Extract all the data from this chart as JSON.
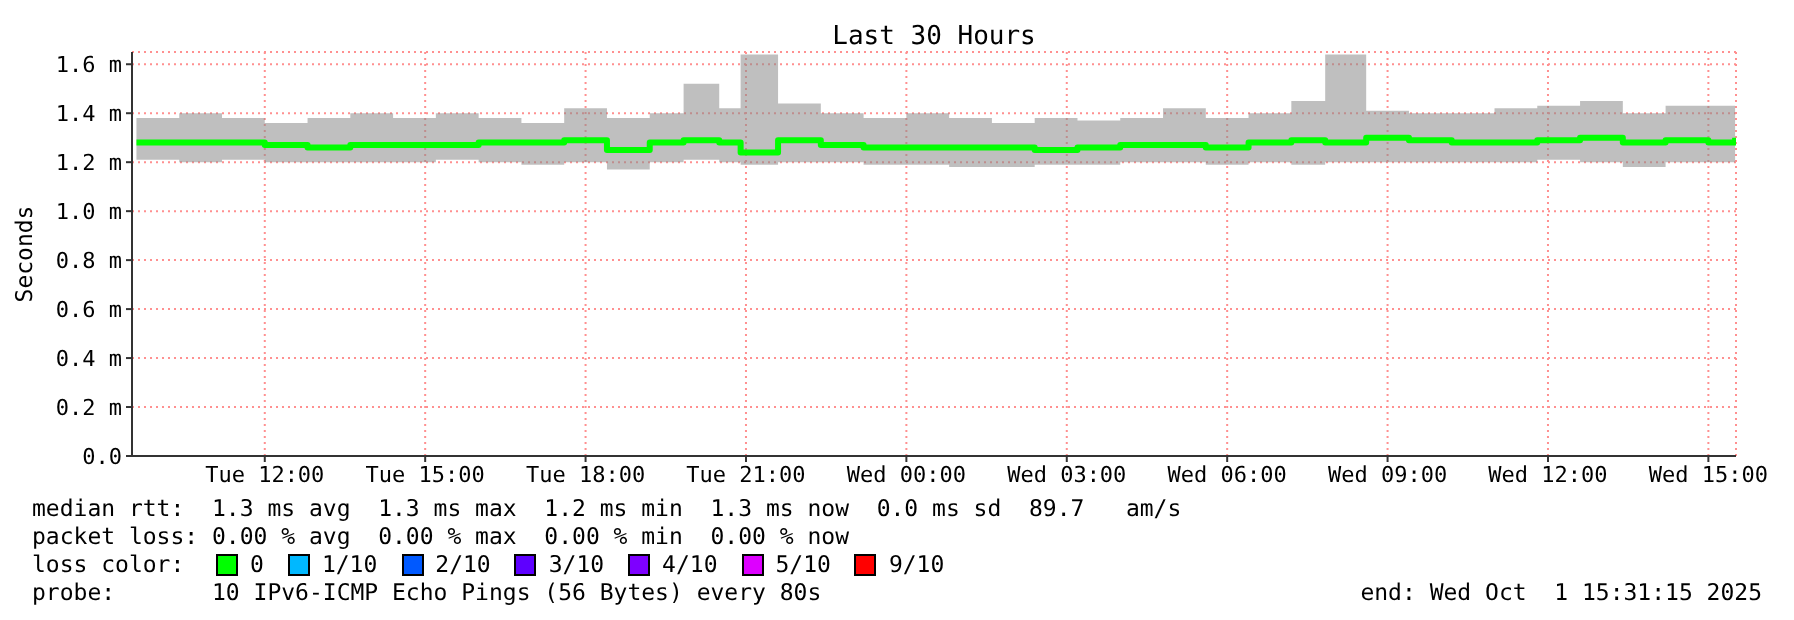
{
  "chart_data": {
    "type": "step",
    "title": "Last 30 Hours",
    "ylabel": "Seconds",
    "x": [
      "2025-09-30T09:36",
      "2025-09-30T10:24",
      "2025-09-30T11:12",
      "2025-09-30T12:00",
      "2025-09-30T12:48",
      "2025-09-30T13:36",
      "2025-09-30T14:24",
      "2025-09-30T15:12",
      "2025-09-30T16:00",
      "2025-09-30T16:48",
      "2025-09-30T17:36",
      "2025-09-30T18:24",
      "2025-09-30T19:12",
      "2025-09-30T19:50",
      "2025-09-30T20:30",
      "2025-09-30T20:54",
      "2025-09-30T21:36",
      "2025-09-30T22:24",
      "2025-09-30T23:12",
      "2025-10-01T00:00",
      "2025-10-01T00:48",
      "2025-10-01T01:36",
      "2025-10-01T02:24",
      "2025-10-01T03:12",
      "2025-10-01T04:00",
      "2025-10-01T04:48",
      "2025-10-01T05:36",
      "2025-10-01T06:24",
      "2025-10-01T07:12",
      "2025-10-01T07:50",
      "2025-10-01T08:36",
      "2025-10-01T09:24",
      "2025-10-01T10:12",
      "2025-10-01T11:00",
      "2025-10-01T11:48",
      "2025-10-01T12:36",
      "2025-10-01T13:24",
      "2025-10-01T14:12",
      "2025-10-01T15:00",
      "2025-10-01T15:30"
    ],
    "series": [
      {
        "name": "0",
        "color": "#00ff00",
        "values": [
          1.28,
          1.28,
          1.28,
          1.27,
          1.26,
          1.27,
          1.27,
          1.27,
          1.28,
          1.28,
          1.29,
          1.25,
          1.28,
          1.29,
          1.28,
          1.24,
          1.29,
          1.27,
          1.26,
          1.26,
          1.26,
          1.26,
          1.25,
          1.26,
          1.27,
          1.27,
          1.26,
          1.28,
          1.29,
          1.28,
          1.3,
          1.29,
          1.28,
          1.28,
          1.29,
          1.3,
          1.28,
          1.29,
          1.28,
          1.3
        ],
        "lower": [
          1.21,
          1.2,
          1.21,
          1.2,
          1.2,
          1.2,
          1.2,
          1.21,
          1.2,
          1.19,
          1.2,
          1.17,
          1.2,
          1.21,
          1.2,
          1.19,
          1.2,
          1.2,
          1.19,
          1.19,
          1.18,
          1.18,
          1.19,
          1.19,
          1.2,
          1.2,
          1.19,
          1.2,
          1.19,
          1.2,
          1.2,
          1.2,
          1.2,
          1.2,
          1.21,
          1.2,
          1.18,
          1.2,
          1.2,
          1.21
        ],
        "upper": [
          1.38,
          1.4,
          1.38,
          1.36,
          1.38,
          1.4,
          1.38,
          1.4,
          1.38,
          1.36,
          1.42,
          1.38,
          1.4,
          1.52,
          1.42,
          1.64,
          1.44,
          1.4,
          1.38,
          1.4,
          1.38,
          1.36,
          1.38,
          1.37,
          1.38,
          1.42,
          1.38,
          1.4,
          1.45,
          1.64,
          1.41,
          1.4,
          1.4,
          1.42,
          1.43,
          1.45,
          1.4,
          1.43,
          1.43,
          1.42
        ]
      },
      {
        "name": "1/10",
        "color": "#00b8ff",
        "values": [
          null,
          null,
          null,
          null,
          null,
          null,
          null,
          null,
          null,
          null,
          null,
          null,
          null,
          null,
          null,
          null,
          null,
          null,
          null,
          null,
          null,
          null,
          null,
          null,
          null,
          null,
          null,
          null,
          null,
          null,
          null,
          null,
          null,
          null,
          null,
          null,
          null,
          null,
          null,
          null
        ]
      },
      {
        "name": "2/10",
        "color": "#0059ff",
        "values": [
          null,
          null,
          null,
          null,
          null,
          null,
          null,
          null,
          null,
          null,
          null,
          null,
          null,
          null,
          null,
          null,
          null,
          null,
          null,
          null,
          null,
          null,
          null,
          null,
          null,
          null,
          null,
          null,
          null,
          null,
          null,
          null,
          null,
          null,
          null,
          null,
          null,
          null,
          null,
          null
        ]
      },
      {
        "name": "3/10",
        "color": "#5e00ff",
        "values": [
          null,
          null,
          null,
          null,
          null,
          null,
          null,
          null,
          null,
          null,
          null,
          null,
          null,
          null,
          null,
          null,
          null,
          null,
          null,
          null,
          null,
          null,
          null,
          null,
          null,
          null,
          null,
          null,
          null,
          null,
          null,
          null,
          null,
          null,
          null,
          null,
          null,
          null,
          null,
          null
        ]
      },
      {
        "name": "4/10",
        "color": "#7e00ff",
        "values": [
          null,
          null,
          null,
          null,
          null,
          null,
          null,
          null,
          null,
          null,
          null,
          null,
          null,
          null,
          null,
          null,
          null,
          null,
          null,
          null,
          null,
          null,
          null,
          null,
          null,
          null,
          null,
          null,
          null,
          null,
          null,
          null,
          null,
          null,
          null,
          null,
          null,
          null,
          null,
          null
        ]
      },
      {
        "name": "5/10",
        "color": "#dd00ff",
        "values": [
          null,
          null,
          null,
          null,
          null,
          null,
          null,
          null,
          null,
          null,
          null,
          null,
          null,
          null,
          null,
          null,
          null,
          null,
          null,
          null,
          null,
          null,
          null,
          null,
          null,
          null,
          null,
          null,
          null,
          null,
          null,
          null,
          null,
          null,
          null,
          null,
          null,
          null,
          null,
          null
        ]
      },
      {
        "name": "9/10",
        "color": "#ff0000",
        "values": [
          null,
          null,
          null,
          null,
          null,
          null,
          null,
          null,
          null,
          null,
          null,
          null,
          null,
          null,
          null,
          null,
          null,
          null,
          null,
          null,
          null,
          null,
          null,
          null,
          null,
          null,
          null,
          null,
          null,
          null,
          null,
          null,
          null,
          null,
          null,
          null,
          null,
          null,
          null,
          null
        ]
      }
    ],
    "legend_title": "loss color:",
    "legend": "bottom",
    "xlim": [
      "2025-09-30T09:31",
      "2025-10-01T15:31"
    ],
    "xticks": [
      {
        "value": "2025-09-30T12:00",
        "label": "Tue 12:00"
      },
      {
        "value": "2025-09-30T15:00",
        "label": "Tue 15:00"
      },
      {
        "value": "2025-09-30T18:00",
        "label": "Tue 18:00"
      },
      {
        "value": "2025-09-30T21:00",
        "label": "Tue 21:00"
      },
      {
        "value": "2025-10-01T00:00",
        "label": "Wed 00:00"
      },
      {
        "value": "2025-10-01T03:00",
        "label": "Wed 03:00"
      },
      {
        "value": "2025-10-01T06:00",
        "label": "Wed 06:00"
      },
      {
        "value": "2025-10-01T09:00",
        "label": "Wed 09:00"
      },
      {
        "value": "2025-10-01T12:00",
        "label": "Wed 12:00"
      },
      {
        "value": "2025-10-01T15:00",
        "label": "Wed 15:00"
      }
    ],
    "ylim": [
      0,
      1.65
    ],
    "yticks": [
      {
        "value": 0,
        "label": "0.0"
      },
      {
        "value": 0.2,
        "label": "0.2 m"
      },
      {
        "value": 0.4,
        "label": "0.4 m"
      },
      {
        "value": 0.6,
        "label": "0.6 m"
      },
      {
        "value": 0.8,
        "label": "0.8 m"
      },
      {
        "value": 1.0,
        "label": "1.0 m"
      },
      {
        "value": 1.2,
        "label": "1.2 m"
      },
      {
        "value": 1.4,
        "label": "1.4 m"
      },
      {
        "value": 1.6,
        "label": "1.6 m"
      }
    ],
    "grid": true,
    "annotations": [
      "median rtt:  1.3 ms avg  1.3 ms max  1.2 ms min  1.3 ms now  0.0 ms sd  89.7   am/s",
      "packet loss: 0.00 % avg  0.00 % max  0.00 % min  0.00 % now",
      "probe:       10 IPv6-ICMP Echo Pings (56 Bytes) every 80s",
      "end: Wed Oct  1 15:31:15 2025"
    ]
  }
}
